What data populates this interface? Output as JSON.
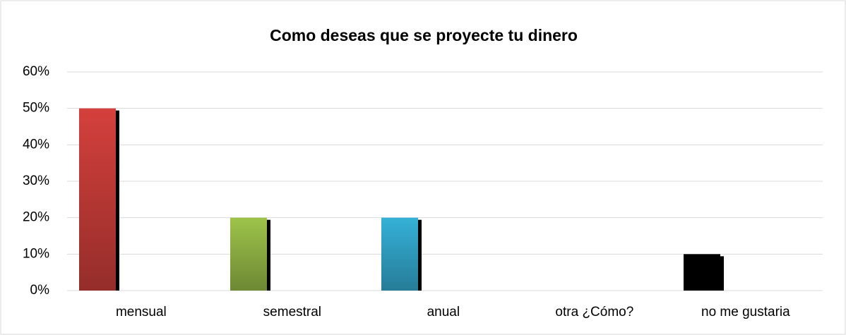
{
  "chart_data": {
    "type": "bar",
    "title": "Como deseas que se proyecte tu dinero",
    "categories": [
      "mensual",
      "semestral",
      "anual",
      "otra ¿Cómo?",
      "no me gustaria"
    ],
    "values": [
      50,
      20,
      20,
      0,
      10
    ],
    "colors": [
      "#d4403c",
      "#9dc34a",
      "#35b1d8",
      "#7f7f7f",
      "#000000"
    ],
    "ylim": [
      0,
      60
    ],
    "yticks": [
      {
        "value": 0,
        "label": "0%"
      },
      {
        "value": 10,
        "label": "10%"
      },
      {
        "value": 20,
        "label": "20%"
      },
      {
        "value": 30,
        "label": "30%"
      },
      {
        "value": 40,
        "label": "40%"
      },
      {
        "value": 50,
        "label": "50%"
      },
      {
        "value": 60,
        "label": "60%"
      }
    ],
    "grid": true
  }
}
